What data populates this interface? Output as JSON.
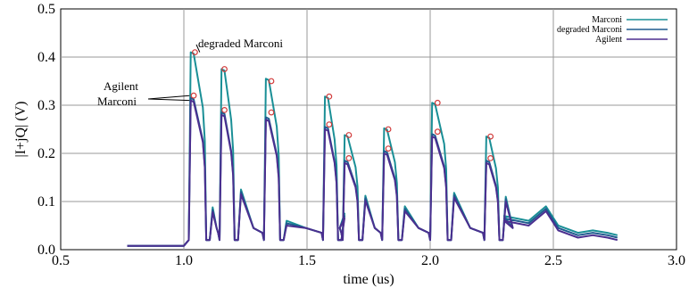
{
  "chart_data": {
    "type": "line",
    "xlabel": "time (us)",
    "ylabel": "|I+jQ| (V)",
    "xlim": [
      0.5,
      3.0
    ],
    "ylim": [
      0.0,
      0.5
    ],
    "x_ticks": [
      "0.5",
      "1.0",
      "1.5",
      "2.0",
      "2.5",
      "3.0"
    ],
    "y_ticks": [
      "0.0",
      "0.1",
      "0.2",
      "0.3",
      "0.4",
      "0.5"
    ],
    "grid": true,
    "legend_position": "top-right",
    "legend": [
      {
        "label": "Marconi",
        "color": "#1a8f96"
      },
      {
        "label": "degraded Marconi",
        "color": "#1f5b8f"
      },
      {
        "label": "Agilent",
        "color": "#4b2f8f"
      }
    ],
    "annotations": [
      {
        "text": "degraded Marconi",
        "x": 1.05,
        "y": 0.41
      },
      {
        "text": "Agilent",
        "x": 1.03,
        "y": 0.32
      },
      {
        "text": "Marconi",
        "x": 1.03,
        "y": 0.31
      }
    ],
    "baseline_start_x": 0.77,
    "baseline_end_x": 1.0,
    "pulses": [
      {
        "start": 1.02,
        "end": 1.085,
        "peak_degraded": 0.41,
        "peak_main": 0.32,
        "after_bump": 0.088
      },
      {
        "start": 1.145,
        "end": 1.2,
        "peak_degraded": 0.375,
        "peak_main": 0.29,
        "after_bump": 0.125
      },
      {
        "start": 1.325,
        "end": 1.385,
        "peak_degraded": 0.355,
        "peak_main": 0.28,
        "after_bump": 0.06
      },
      {
        "start": 1.565,
        "end": 1.62,
        "peak_degraded": 0.318,
        "peak_main": 0.26,
        "after_bump": 0.075
      },
      {
        "start": 1.645,
        "end": 1.705,
        "peak_degraded": 0.238,
        "peak_main": 0.19,
        "after_bump": 0.112
      },
      {
        "start": 1.805,
        "end": 1.865,
        "peak_degraded": 0.252,
        "peak_main": 0.21,
        "after_bump": 0.09
      },
      {
        "start": 2.0,
        "end": 2.065,
        "peak_degraded": 0.305,
        "peak_main": 0.245,
        "after_bump": 0.118
      },
      {
        "start": 2.22,
        "end": 2.275,
        "peak_degraded": 0.235,
        "peak_main": 0.19,
        "after_bump": 0.11
      }
    ],
    "series": [
      {
        "name": "Marconi",
        "color": "#1a8f96",
        "scale": 1.0,
        "offset": 0.0
      },
      {
        "name": "degraded Marconi",
        "color": "#1f5b8f",
        "scale": 1.0,
        "offset": -0.005
      },
      {
        "name": "Agilent",
        "color": "#4b2f8f",
        "scale": 1.0,
        "offset": -0.01
      }
    ],
    "markers": [
      {
        "x": 1.045,
        "y": 0.41
      },
      {
        "x": 1.04,
        "y": 0.32
      },
      {
        "x": 1.165,
        "y": 0.375
      },
      {
        "x": 1.165,
        "y": 0.29
      },
      {
        "x": 1.355,
        "y": 0.35
      },
      {
        "x": 1.355,
        "y": 0.285
      },
      {
        "x": 1.59,
        "y": 0.318
      },
      {
        "x": 1.59,
        "y": 0.26
      },
      {
        "x": 1.67,
        "y": 0.238
      },
      {
        "x": 1.67,
        "y": 0.19
      },
      {
        "x": 1.83,
        "y": 0.25
      },
      {
        "x": 1.83,
        "y": 0.21
      },
      {
        "x": 2.03,
        "y": 0.305
      },
      {
        "x": 2.03,
        "y": 0.245
      },
      {
        "x": 2.245,
        "y": 0.235
      },
      {
        "x": 2.245,
        "y": 0.19
      }
    ],
    "tail": [
      {
        "x": 2.3,
        "y": 0.07
      },
      {
        "x": 2.4,
        "y": 0.06
      },
      {
        "x": 2.47,
        "y": 0.09
      },
      {
        "x": 2.52,
        "y": 0.05
      },
      {
        "x": 2.6,
        "y": 0.035
      },
      {
        "x": 2.66,
        "y": 0.04
      },
      {
        "x": 2.72,
        "y": 0.035
      },
      {
        "x": 2.76,
        "y": 0.03
      }
    ]
  }
}
